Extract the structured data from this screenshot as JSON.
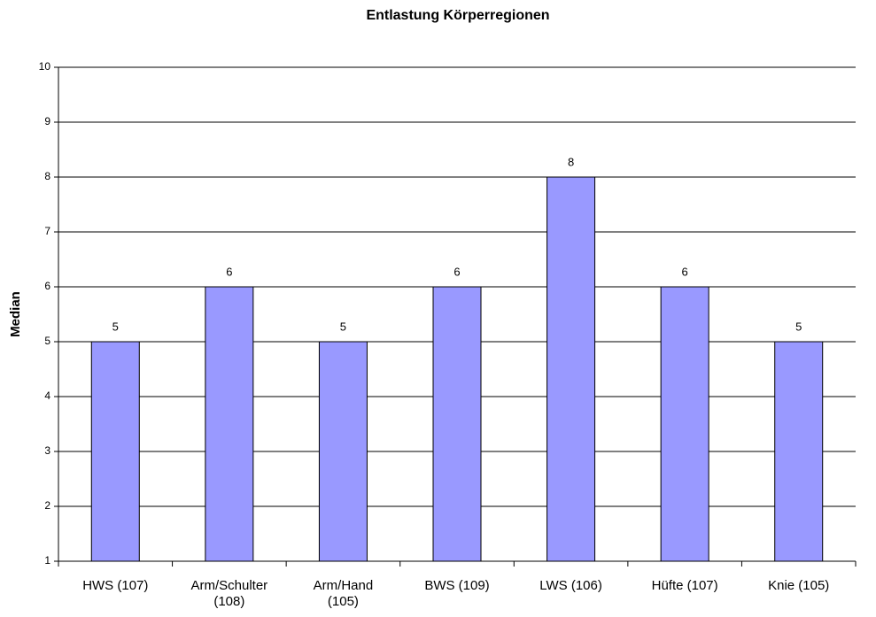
{
  "chart_data": {
    "type": "bar",
    "title": "Entlastung Körperregionen",
    "y_label": "Median",
    "categories": [
      "HWS (107)",
      "Arm/Schulter (108)",
      "Arm/Hand (105)",
      "BWS (109)",
      "LWS (106)",
      "Hüfte (107)",
      "Knie (105)"
    ],
    "values": [
      5,
      6,
      5,
      6,
      8,
      6,
      5
    ],
    "color": "#9999ff",
    "ylim": [
      1,
      10
    ],
    "yticks": [
      1,
      2,
      3,
      4,
      5,
      6,
      7,
      8,
      9,
      10
    ],
    "grid": true
  }
}
